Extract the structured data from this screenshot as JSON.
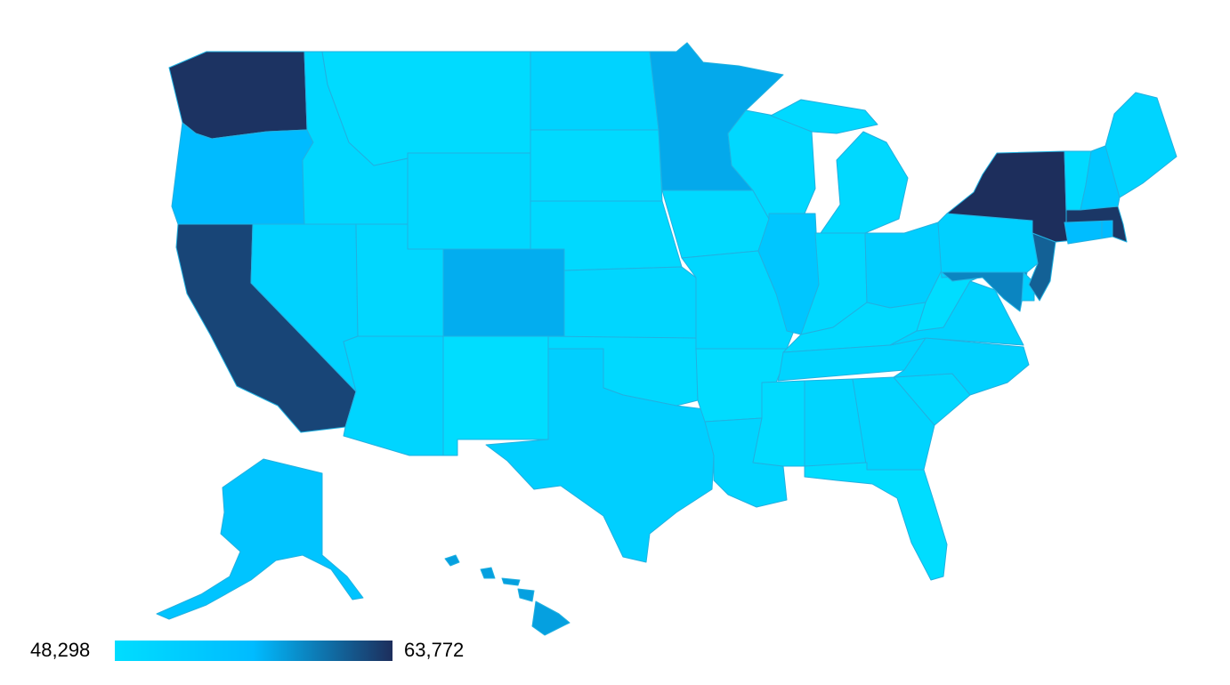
{
  "legend": {
    "min_label": "48,298",
    "max_label": "63,772",
    "min_value": 48298,
    "max_value": 63772,
    "gradient_colors": [
      "#00ddff",
      "#00bbff",
      "#1d2e5c"
    ]
  },
  "states": [
    {
      "id": "WA",
      "value": 63500
    },
    {
      "id": "OR",
      "value": 56000
    },
    {
      "id": "CA",
      "value": 62500
    },
    {
      "id": "NV",
      "value": 50800
    },
    {
      "id": "ID",
      "value": 49600
    },
    {
      "id": "MT",
      "value": 48700
    },
    {
      "id": "WY",
      "value": 49700
    },
    {
      "id": "UT",
      "value": 49700
    },
    {
      "id": "AZ",
      "value": 50100
    },
    {
      "id": "CO",
      "value": 56800
    },
    {
      "id": "NM",
      "value": 48300
    },
    {
      "id": "ND",
      "value": 50600
    },
    {
      "id": "SD",
      "value": 48900
    },
    {
      "id": "NE",
      "value": 49200
    },
    {
      "id": "KS",
      "value": 50000
    },
    {
      "id": "OK",
      "value": 49300
    },
    {
      "id": "TX",
      "value": 51500
    },
    {
      "id": "MN",
      "value": 57000
    },
    {
      "id": "IA",
      "value": 49300
    },
    {
      "id": "MO",
      "value": 49600
    },
    {
      "id": "AR",
      "value": 48500
    },
    {
      "id": "LA",
      "value": 50400
    },
    {
      "id": "WI",
      "value": 49500
    },
    {
      "id": "IL",
      "value": 53500
    },
    {
      "id": "MI",
      "value": 49300
    },
    {
      "id": "IN",
      "value": 49400
    },
    {
      "id": "OH",
      "value": 51800
    },
    {
      "id": "KY",
      "value": 49200
    },
    {
      "id": "TN",
      "value": 50400
    },
    {
      "id": "MS",
      "value": 48800
    },
    {
      "id": "AL",
      "value": 50100
    },
    {
      "id": "GA",
      "value": 50300
    },
    {
      "id": "FL",
      "value": 48400
    },
    {
      "id": "SC",
      "value": 49600
    },
    {
      "id": "NC",
      "value": 51000
    },
    {
      "id": "VA",
      "value": 50900
    },
    {
      "id": "WV",
      "value": 48300
    },
    {
      "id": "PA",
      "value": 51300
    },
    {
      "id": "NY",
      "value": 63772
    },
    {
      "id": "VT",
      "value": 49000
    },
    {
      "id": "NH",
      "value": 53000
    },
    {
      "id": "ME",
      "value": 50300
    },
    {
      "id": "MA",
      "value": 63300
    },
    {
      "id": "CT",
      "value": 55500
    },
    {
      "id": "RI",
      "value": 56000
    },
    {
      "id": "NJ",
      "value": 61000
    },
    {
      "id": "DE",
      "value": 51500
    },
    {
      "id": "MD",
      "value": 59000
    },
    {
      "id": "AK",
      "value": 54000
    },
    {
      "id": "HI",
      "value": 57500
    }
  ]
}
